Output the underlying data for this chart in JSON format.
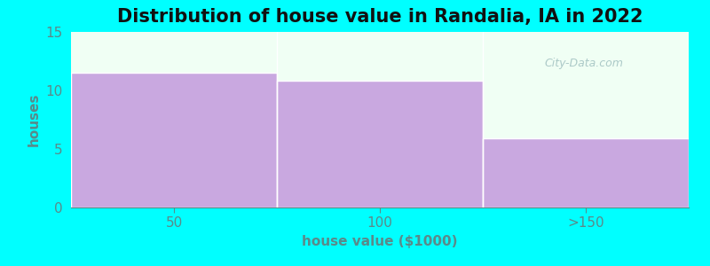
{
  "title": "Distribution of house value in Randalia, IA in 2022",
  "xlabel": "house value ($1000)",
  "ylabel": "houses",
  "categories": [
    "50",
    "100",
    ">150"
  ],
  "values": [
    11.5,
    10.8,
    5.9
  ],
  "bar_color": "#c9a8e0",
  "bar_edge_color": "#ffffff",
  "background_color": "#00ffff",
  "plot_bg_color": "#f0fff4",
  "ylim": [
    0,
    15
  ],
  "yticks": [
    0,
    5,
    10,
    15
  ],
  "title_fontsize": 15,
  "axis_label_fontsize": 11,
  "tick_fontsize": 11,
  "tick_color": "#5a8a8a",
  "label_color": "#5a8a8a",
  "title_color": "#111111"
}
